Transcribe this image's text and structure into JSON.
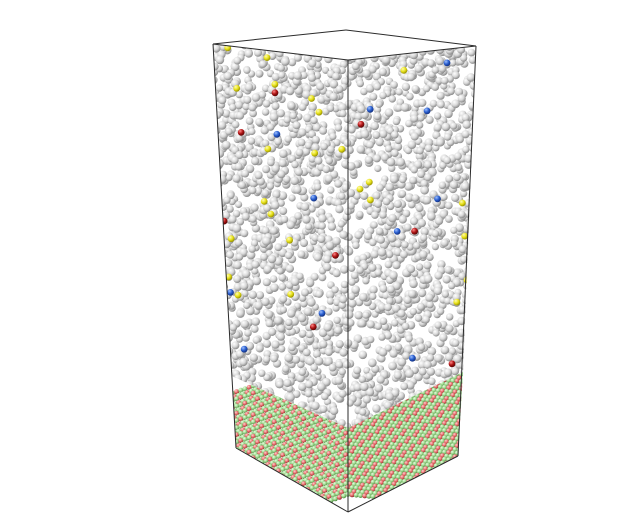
{
  "scene": {
    "description_visible": "",
    "colors": {
      "background": "#ffffff",
      "box_edge": "#2b2b2b",
      "solvent_atom": "#d9d9d9",
      "solvent_atom_highlight": "#ffffff",
      "solvent_atom_shadow": "#8c8c8c",
      "dopant_yellow": "#e8e21a",
      "dopant_blue": "#2a5fd0",
      "dopant_red": "#b01515",
      "crystal_green": "#9bd58b",
      "crystal_red": "#e66a6a"
    },
    "icons": {
      "simulation_box": "box-outline-icon",
      "liquid_region": "particle-cloud-icon",
      "crystal_region": "lattice-icon"
    }
  }
}
